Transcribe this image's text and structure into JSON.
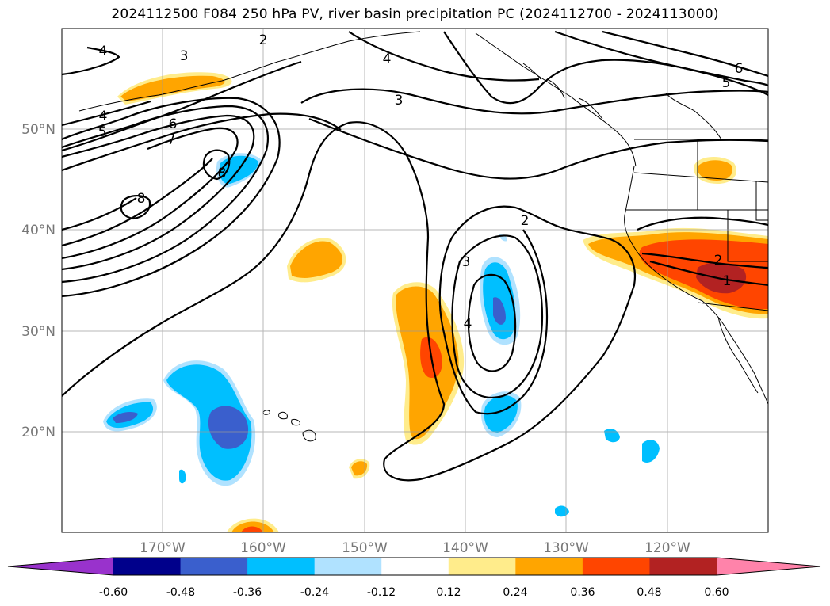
{
  "title": "2024112500 F084 250 hPa PV, river basin precipitation PC (2024112700 - 2024113000)",
  "chart_data": {
    "type": "heatmap",
    "title": "2024112500 F084 250 hPa PV, river basin precipitation PC (2024112700 - 2024113000)",
    "xlim": [
      -180,
      -110
    ],
    "ylim": [
      10,
      60
    ],
    "x_ticks": [
      -170,
      -160,
      -150,
      -140,
      -130,
      -120
    ],
    "x_tick_labels": [
      "170°W",
      "160°W",
      "150°W",
      "140°W",
      "130°W",
      "120°W"
    ],
    "y_ticks": [
      20,
      30,
      40,
      50
    ],
    "y_tick_labels": [
      "20°N",
      "30°N",
      "40°N",
      "50°N"
    ],
    "grid": true,
    "contour_levels": [
      "1",
      "2",
      "3",
      "4",
      "5",
      "6",
      "7",
      "8"
    ],
    "colorbar": {
      "ticks": [
        "-0.60",
        "-0.48",
        "-0.36",
        "-0.24",
        "-0.12",
        "0.12",
        "0.24",
        "0.36",
        "0.48",
        "0.60"
      ],
      "colors": [
        "#9932CC",
        "#00008B",
        "#3A5FCD",
        "#00BFFF",
        "#B0E2FF",
        "#FFFFFF",
        "#FFEC8B",
        "#FFA500",
        "#FF4500",
        "#B22222",
        "#FF83AA"
      ],
      "extend": "both"
    }
  }
}
